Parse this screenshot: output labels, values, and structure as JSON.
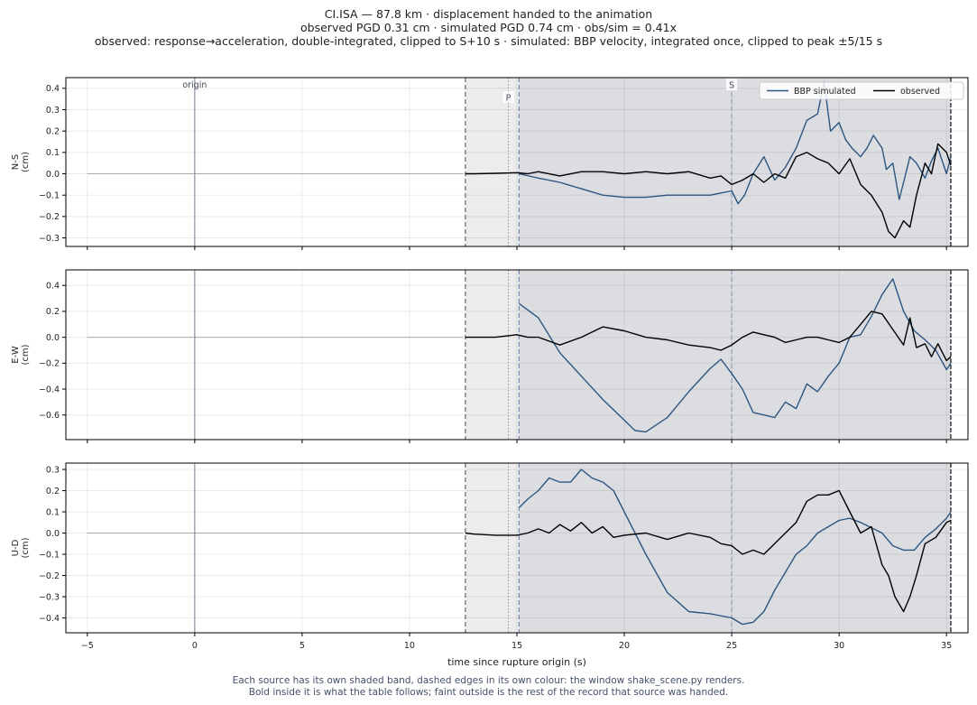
{
  "header": {
    "lines": [
      "CI.ISA  —  87.8 km   ·   displacement handed to the animation",
      "observed PGD 0.31 cm   ·   simulated PGD 0.74 cm   ·   obs/sim = 0.41x",
      "observed: response→acceleration, double-integrated, clipped to S+10 s   ·   simulated: BBP velocity, integrated once, clipped to peak ±5/15 s"
    ]
  },
  "caption": {
    "lines": [
      "Each source has its own shaded band, dashed edges in its own colour: the window shake_scene.py renders.",
      "Bold inside it is what the table follows;   faint outside is the rest of the record that source was handed."
    ]
  },
  "colors": {
    "simulated": "#2c5680",
    "observed": "#000000",
    "faint": "#aaaaaa",
    "band_observed": "#ececec",
    "band_simulated": "#dcdde1",
    "marker": "#8a94a8"
  },
  "chart_data": {
    "type": "line",
    "xlabel": "time since rupture origin (s)",
    "xlim": [
      -6,
      36
    ],
    "xticks": [
      -5,
      0,
      5,
      10,
      15,
      20,
      25,
      30,
      35
    ],
    "markers": {
      "origin": {
        "x": 0,
        "label": "origin"
      },
      "P": {
        "x": 14.6,
        "label": "P"
      },
      "S": {
        "x": 25.0,
        "label": "S"
      }
    },
    "bands": {
      "observed": [
        12.6,
        35.2
      ],
      "simulated": [
        15.1,
        35.2
      ]
    },
    "legend": {
      "placement": "top-right",
      "entries": [
        {
          "name": "BBP simulated",
          "color": "#2c5680"
        },
        {
          "name": "observed",
          "color": "#000000"
        }
      ]
    },
    "panels": [
      {
        "ylabel": "N-S\n(cm)",
        "ylim": [
          -0.34,
          0.45
        ],
        "yticks": [
          -0.3,
          -0.2,
          -0.1,
          0.0,
          0.1,
          0.2,
          0.3,
          0.4
        ],
        "yticklabels": [
          "−0.3",
          "−0.2",
          "−0.1",
          "0.0",
          "0.1",
          "0.2",
          "0.3",
          "0.4"
        ],
        "series": [
          {
            "name": "BBP simulated",
            "x": [
              15.1,
              16,
              17,
              18,
              19,
              20,
              21,
              22,
              23,
              24,
              24.5,
              25,
              25.3,
              25.6,
              26,
              26.5,
              27,
              27.5,
              28,
              28.5,
              29,
              29.3,
              29.6,
              30,
              30.3,
              30.6,
              31,
              31.3,
              31.6,
              32,
              32.2,
              32.5,
              32.8,
              33,
              33.3,
              33.6,
              34,
              34.3,
              34.6,
              35,
              35.2
            ],
            "y": [
              0.0,
              -0.02,
              -0.04,
              -0.07,
              -0.1,
              -0.11,
              -0.11,
              -0.1,
              -0.1,
              -0.1,
              -0.09,
              -0.08,
              -0.14,
              -0.1,
              0.0,
              0.08,
              -0.03,
              0.03,
              0.12,
              0.25,
              0.28,
              0.43,
              0.2,
              0.24,
              0.16,
              0.12,
              0.08,
              0.12,
              0.18,
              0.12,
              0.02,
              0.05,
              -0.12,
              -0.04,
              0.08,
              0.05,
              -0.02,
              0.06,
              0.12,
              0.0,
              0.08
            ]
          },
          {
            "name": "observed",
            "x": [
              12.6,
              13,
              14,
              15,
              15.5,
              16,
              17,
              18,
              19,
              20,
              21,
              22,
              23,
              24,
              24.5,
              25,
              25.5,
              26,
              26.5,
              27,
              27.5,
              28,
              28.5,
              29,
              29.5,
              30,
              30.5,
              31,
              31.5,
              32,
              32.3,
              32.6,
              33,
              33.3,
              33.6,
              34,
              34.3,
              34.6,
              35,
              35.2
            ],
            "y": [
              0.0,
              0.0,
              0.002,
              0.005,
              0.0,
              0.01,
              -0.01,
              0.01,
              0.01,
              0.0,
              0.01,
              0.0,
              0.01,
              -0.02,
              -0.01,
              -0.05,
              -0.03,
              0.0,
              -0.04,
              0.0,
              -0.02,
              0.08,
              0.1,
              0.07,
              0.05,
              0.0,
              0.07,
              -0.05,
              -0.1,
              -0.18,
              -0.27,
              -0.3,
              -0.22,
              -0.25,
              -0.1,
              0.05,
              0.0,
              0.14,
              0.1,
              0.04
            ]
          }
        ]
      },
      {
        "ylabel": "E-W\n(cm)",
        "ylim": [
          -0.79,
          0.52
        ],
        "yticks": [
          -0.6,
          -0.4,
          -0.2,
          0.0,
          0.2,
          0.4
        ],
        "yticklabels": [
          "−0.6",
          "−0.4",
          "−0.2",
          "0.0",
          "0.2",
          "0.4"
        ],
        "series": [
          {
            "name": "BBP simulated",
            "x": [
              15.1,
              16,
              17,
              18,
              19,
              20,
              20.5,
              21,
              22,
              23,
              24,
              24.5,
              25,
              25.5,
              26,
              26.5,
              27,
              27.5,
              28,
              28.5,
              29,
              29.5,
              30,
              30.5,
              31,
              31.5,
              32,
              32.5,
              33,
              33.5,
              34,
              34.5,
              35,
              35.2
            ],
            "y": [
              0.26,
              0.15,
              -0.12,
              -0.3,
              -0.48,
              -0.64,
              -0.72,
              -0.73,
              -0.62,
              -0.42,
              -0.24,
              -0.17,
              -0.28,
              -0.4,
              -0.58,
              -0.6,
              -0.62,
              -0.5,
              -0.55,
              -0.36,
              -0.42,
              -0.3,
              -0.2,
              0.0,
              0.02,
              0.16,
              0.33,
              0.45,
              0.2,
              0.05,
              -0.02,
              -0.1,
              -0.25,
              -0.2
            ]
          },
          {
            "name": "observed",
            "x": [
              12.6,
              13,
              14,
              15,
              15.5,
              16,
              17,
              18,
              19,
              20,
              21,
              22,
              23,
              24,
              24.5,
              25,
              25.5,
              26,
              26.5,
              27,
              27.5,
              28,
              28.5,
              29,
              29.5,
              30,
              30.5,
              31,
              31.5,
              32,
              32.5,
              33,
              33.3,
              33.6,
              34,
              34.3,
              34.6,
              35,
              35.2
            ],
            "y": [
              0.0,
              0.0,
              0.0,
              0.02,
              0.0,
              0.0,
              -0.06,
              0.0,
              0.08,
              0.05,
              0.0,
              -0.02,
              -0.06,
              -0.08,
              -0.1,
              -0.06,
              0.0,
              0.04,
              0.02,
              0.0,
              -0.04,
              -0.02,
              0.0,
              0.0,
              -0.02,
              -0.04,
              0.0,
              0.1,
              0.2,
              0.18,
              0.06,
              -0.06,
              0.15,
              -0.08,
              -0.05,
              -0.15,
              -0.05,
              -0.18,
              -0.15
            ]
          }
        ]
      },
      {
        "ylabel": "U-D\n(cm)",
        "ylim": [
          -0.47,
          0.33
        ],
        "yticks": [
          -0.4,
          -0.3,
          -0.2,
          -0.1,
          0.0,
          0.1,
          0.2,
          0.3
        ],
        "yticklabels": [
          "−0.4",
          "−0.3",
          "−0.2",
          "−0.1",
          "0.0",
          "0.1",
          "0.2",
          "0.3"
        ],
        "series": [
          {
            "name": "BBP simulated",
            "x": [
              15.1,
              15.5,
              16,
              16.5,
              17,
              17.5,
              18,
              18.5,
              19,
              19.5,
              20,
              21,
              22,
              23,
              24,
              25,
              25.5,
              26,
              26.5,
              27,
              28,
              28.5,
              29,
              30,
              30.5,
              31,
              32,
              32.5,
              33,
              33.5,
              34,
              34.5,
              35,
              35.2
            ],
            "y": [
              0.12,
              0.16,
              0.2,
              0.26,
              0.24,
              0.24,
              0.3,
              0.26,
              0.24,
              0.2,
              0.1,
              -0.1,
              -0.28,
              -0.37,
              -0.38,
              -0.4,
              -0.43,
              -0.42,
              -0.37,
              -0.27,
              -0.1,
              -0.06,
              0.0,
              0.06,
              0.07,
              0.05,
              0.0,
              -0.06,
              -0.08,
              -0.08,
              -0.02,
              0.02,
              0.07,
              0.1
            ]
          },
          {
            "name": "observed",
            "x": [
              12.6,
              13,
              14,
              15,
              15.5,
              16,
              16.5,
              17,
              17.5,
              18,
              18.5,
              19,
              19.5,
              20,
              21,
              22,
              23,
              24,
              24.5,
              25,
              25.5,
              26,
              26.5,
              27,
              27.5,
              28,
              28.5,
              29,
              29.5,
              30,
              30.5,
              31,
              31.5,
              32,
              32.3,
              32.6,
              33,
              33.3,
              33.6,
              34,
              34.5,
              35,
              35.2
            ],
            "y": [
              0.0,
              -0.005,
              -0.01,
              -0.01,
              0.0,
              0.02,
              0.0,
              0.04,
              0.01,
              0.05,
              0.0,
              0.03,
              -0.02,
              -0.01,
              0.0,
              -0.03,
              0.0,
              -0.02,
              -0.05,
              -0.06,
              -0.1,
              -0.08,
              -0.1,
              -0.05,
              0.0,
              0.05,
              0.15,
              0.18,
              0.18,
              0.2,
              0.1,
              0.0,
              0.03,
              -0.15,
              -0.2,
              -0.3,
              -0.37,
              -0.3,
              -0.2,
              -0.05,
              -0.02,
              0.05,
              0.06
            ]
          }
        ]
      }
    ]
  }
}
